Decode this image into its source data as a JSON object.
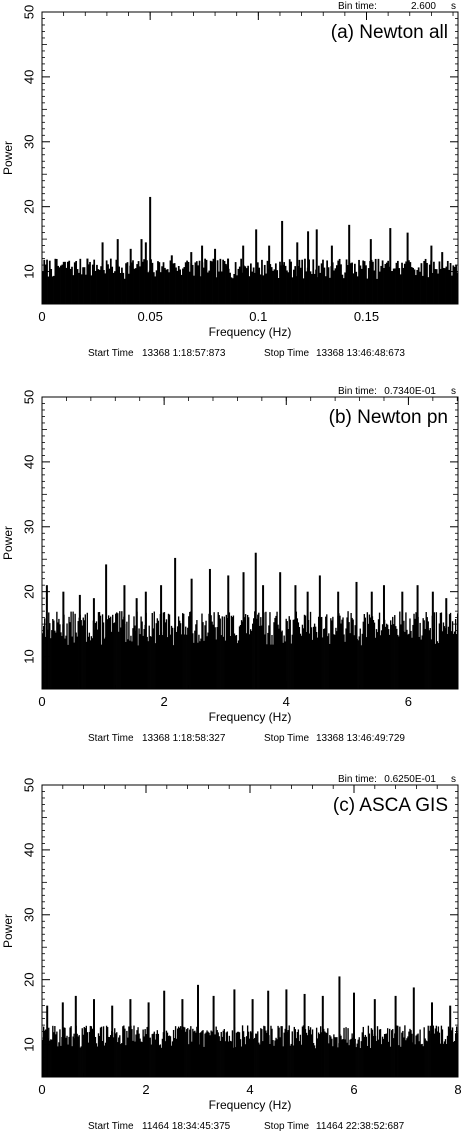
{
  "chart_data": [
    {
      "type": "bar",
      "title": "(a) Newton all",
      "xlabel": "Frequency (Hz)",
      "ylabel": "Power",
      "bin_time_label": "Bin time:",
      "bin_time_value": "2.600",
      "bin_time_unit": "s",
      "start_time_label": "Start Time",
      "start_time_value": "13368  1:18:57:873",
      "stop_time_label": "Stop Time",
      "stop_time_value": "13368 13:46:48:673",
      "xlim": [
        0,
        0.1923
      ],
      "ylim": [
        5,
        50
      ],
      "xticks": [
        0,
        0.05,
        0.1,
        0.15
      ],
      "xtick_labels": [
        "0",
        "0.05",
        "0.1",
        "0.15"
      ],
      "yticks": [
        10,
        20,
        30,
        40,
        50
      ],
      "ytick_labels": [
        "10",
        "20",
        "30",
        "40",
        "50"
      ],
      "noise": {
        "bins": 300,
        "typical_max": 12,
        "seed": 7
      },
      "peaks": [
        {
          "x": 0.012,
          "y": 11.5
        },
        {
          "x": 0.021,
          "y": 12
        },
        {
          "x": 0.028,
          "y": 14.5
        },
        {
          "x": 0.035,
          "y": 15
        },
        {
          "x": 0.041,
          "y": 13.5
        },
        {
          "x": 0.046,
          "y": 15
        },
        {
          "x": 0.048,
          "y": 14.5
        },
        {
          "x": 0.05,
          "y": 21.5
        },
        {
          "x": 0.06,
          "y": 12.5
        },
        {
          "x": 0.069,
          "y": 13
        },
        {
          "x": 0.074,
          "y": 14
        },
        {
          "x": 0.08,
          "y": 13.5
        },
        {
          "x": 0.086,
          "y": 12
        },
        {
          "x": 0.093,
          "y": 14
        },
        {
          "x": 0.099,
          "y": 16.5
        },
        {
          "x": 0.105,
          "y": 14
        },
        {
          "x": 0.111,
          "y": 17.8
        },
        {
          "x": 0.118,
          "y": 14.5
        },
        {
          "x": 0.123,
          "y": 16.2
        },
        {
          "x": 0.127,
          "y": 16.5
        },
        {
          "x": 0.134,
          "y": 14
        },
        {
          "x": 0.142,
          "y": 17.2
        },
        {
          "x": 0.152,
          "y": 15
        },
        {
          "x": 0.161,
          "y": 16.7
        },
        {
          "x": 0.169,
          "y": 16
        },
        {
          "x": 0.18,
          "y": 14
        },
        {
          "x": 0.185,
          "y": 13
        }
      ]
    },
    {
      "type": "bar",
      "title": "(b) Newton pn",
      "xlabel": "Frequency (Hz)",
      "ylabel": "Power",
      "bin_time_label": "Bin time:",
      "bin_time_value": "0.7340E-01",
      "bin_time_unit": "s",
      "start_time_label": "Start Time",
      "start_time_value": "13368  1:18:58:327",
      "stop_time_label": "Stop Time",
      "stop_time_value": "13368 13:46:49:729",
      "xlim": [
        0,
        6.812
      ],
      "ylim": [
        5,
        50
      ],
      "xticks": [
        0,
        2,
        4,
        6
      ],
      "xtick_labels": [
        "0",
        "2",
        "4",
        "6"
      ],
      "yticks": [
        10,
        20,
        30,
        40,
        50
      ],
      "ytick_labels": [
        "10",
        "20",
        "30",
        "40",
        "50"
      ],
      "noise": {
        "bins": 410,
        "typical_max": 17,
        "seed": 13
      },
      "peaks": [
        {
          "x": 0.08,
          "y": 21
        },
        {
          "x": 0.35,
          "y": 20
        },
        {
          "x": 0.62,
          "y": 19.5
        },
        {
          "x": 0.85,
          "y": 19
        },
        {
          "x": 1.05,
          "y": 24.2
        },
        {
          "x": 1.35,
          "y": 21
        },
        {
          "x": 1.55,
          "y": 19
        },
        {
          "x": 1.7,
          "y": 20
        },
        {
          "x": 1.95,
          "y": 21
        },
        {
          "x": 2.18,
          "y": 25.2
        },
        {
          "x": 2.45,
          "y": 22
        },
        {
          "x": 2.75,
          "y": 23.5
        },
        {
          "x": 3.05,
          "y": 22.5
        },
        {
          "x": 3.3,
          "y": 23
        },
        {
          "x": 3.5,
          "y": 26
        },
        {
          "x": 3.62,
          "y": 21
        },
        {
          "x": 3.9,
          "y": 23
        },
        {
          "x": 4.15,
          "y": 21
        },
        {
          "x": 4.35,
          "y": 20
        },
        {
          "x": 4.55,
          "y": 22.5
        },
        {
          "x": 4.85,
          "y": 20
        },
        {
          "x": 5.15,
          "y": 21.5
        },
        {
          "x": 5.4,
          "y": 20
        },
        {
          "x": 5.6,
          "y": 21
        },
        {
          "x": 5.9,
          "y": 20
        },
        {
          "x": 6.15,
          "y": 21
        },
        {
          "x": 6.4,
          "y": 20
        },
        {
          "x": 6.62,
          "y": 19
        }
      ]
    },
    {
      "type": "bar",
      "title": "(c) ASCA GIS",
      "xlabel": "Frequency (Hz)",
      "ylabel": "Power",
      "bin_time_label": "Bin time:",
      "bin_time_value": "0.6250E-01",
      "bin_time_unit": "s",
      "start_time_label": "Start Time",
      "start_time_value": "11464 18:34:45:375",
      "stop_time_label": "Stop Time",
      "stop_time_value": "11464 22:38:52:687",
      "xlim": [
        0,
        8.0
      ],
      "ylim": [
        5,
        50
      ],
      "xticks": [
        0,
        2,
        4,
        6,
        8
      ],
      "xtick_labels": [
        "0",
        "2",
        "4",
        "6",
        "8"
      ],
      "yticks": [
        10,
        20,
        30,
        40,
        50
      ],
      "ytick_labels": [
        "10",
        "20",
        "30",
        "40",
        "50"
      ],
      "noise": {
        "bins": 410,
        "typical_max": 13,
        "seed": 29
      },
      "peaks": [
        {
          "x": 0.1,
          "y": 16
        },
        {
          "x": 0.4,
          "y": 16.5
        },
        {
          "x": 0.65,
          "y": 17.5
        },
        {
          "x": 1.0,
          "y": 17
        },
        {
          "x": 1.35,
          "y": 16
        },
        {
          "x": 1.7,
          "y": 17
        },
        {
          "x": 2.05,
          "y": 16.5
        },
        {
          "x": 2.35,
          "y": 18.3
        },
        {
          "x": 2.7,
          "y": 17
        },
        {
          "x": 3.0,
          "y": 19.2
        },
        {
          "x": 3.3,
          "y": 17.5
        },
        {
          "x": 3.7,
          "y": 18.5
        },
        {
          "x": 4.05,
          "y": 17
        },
        {
          "x": 4.35,
          "y": 18.3
        },
        {
          "x": 4.7,
          "y": 18.5
        },
        {
          "x": 5.05,
          "y": 17.8
        },
        {
          "x": 5.4,
          "y": 17.5
        },
        {
          "x": 5.72,
          "y": 20.5
        },
        {
          "x": 6.0,
          "y": 18
        },
        {
          "x": 6.4,
          "y": 17
        },
        {
          "x": 6.8,
          "y": 17.5
        },
        {
          "x": 7.15,
          "y": 18.8
        },
        {
          "x": 7.5,
          "y": 16.5
        },
        {
          "x": 7.85,
          "y": 16
        }
      ]
    }
  ]
}
